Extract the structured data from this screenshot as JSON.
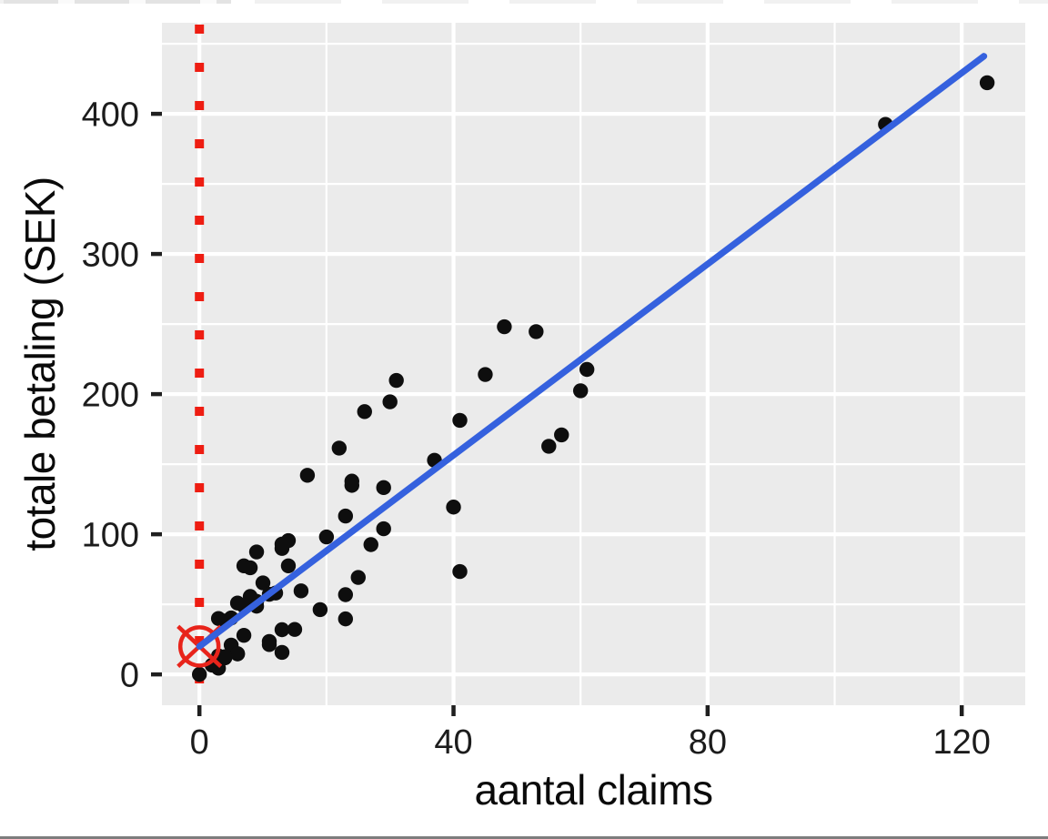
{
  "chart_data": {
    "type": "scatter",
    "title": "",
    "xlabel": "aantal claims",
    "ylabel": "totale betaling (SEK)",
    "xlim": [
      -5.9,
      130.0
    ],
    "ylim": [
      -22,
      465
    ],
    "x_ticks": [
      0,
      40,
      80,
      120
    ],
    "y_ticks": [
      0,
      100,
      200,
      300,
      400
    ],
    "x_minor_ticks": [
      20,
      60,
      100
    ],
    "y_minor_ticks": [
      50,
      150,
      250,
      350,
      450
    ],
    "grid": true,
    "legend": false,
    "points": [
      [
        108,
        392.5
      ],
      [
        19,
        46.2
      ],
      [
        13,
        15.7
      ],
      [
        124,
        422.2
      ],
      [
        40,
        119.4
      ],
      [
        57,
        170.9
      ],
      [
        23,
        56.9
      ],
      [
        14,
        77.5
      ],
      [
        45,
        214.0
      ],
      [
        10,
        65.3
      ],
      [
        5,
        20.9
      ],
      [
        48,
        248.1
      ],
      [
        11,
        23.5
      ],
      [
        23,
        39.6
      ],
      [
        7,
        48.8
      ],
      [
        2,
        6.6
      ],
      [
        24,
        134.9
      ],
      [
        6,
        50.9
      ],
      [
        3,
        4.4
      ],
      [
        23,
        113.0
      ],
      [
        6,
        14.8
      ],
      [
        9,
        48.7
      ],
      [
        9,
        52.1
      ],
      [
        3,
        13.2
      ],
      [
        29,
        103.9
      ],
      [
        7,
        77.5
      ],
      [
        4,
        11.8
      ],
      [
        20,
        98.1
      ],
      [
        7,
        27.9
      ],
      [
        4,
        38.1
      ],
      [
        0,
        0.0
      ],
      [
        25,
        69.2
      ],
      [
        6,
        14.6
      ],
      [
        5,
        40.3
      ],
      [
        22,
        161.5
      ],
      [
        11,
        57.2
      ],
      [
        61,
        217.6
      ],
      [
        12,
        58.1
      ],
      [
        4,
        12.6
      ],
      [
        16,
        59.6
      ],
      [
        13,
        89.9
      ],
      [
        60,
        202.4
      ],
      [
        41,
        181.3
      ],
      [
        37,
        152.8
      ],
      [
        55,
        162.8
      ],
      [
        41,
        73.4
      ],
      [
        11,
        21.3
      ],
      [
        27,
        92.6
      ],
      [
        8,
        76.1
      ],
      [
        3,
        39.9
      ],
      [
        17,
        142.1
      ],
      [
        13,
        93.0
      ],
      [
        13,
        31.9
      ],
      [
        15,
        32.1
      ],
      [
        8,
        55.6
      ],
      [
        29,
        133.3
      ],
      [
        30,
        194.5
      ],
      [
        24,
        137.9
      ],
      [
        9,
        87.4
      ],
      [
        31,
        209.8
      ],
      [
        14,
        95.5
      ],
      [
        53,
        244.6
      ],
      [
        26,
        187.5
      ]
    ],
    "regression_line": {
      "slope": 3.41,
      "intercept": 20.0,
      "x_start": 0,
      "x_end": 123.5,
      "color": "#3561DE"
    },
    "zero_vline": {
      "x": 0,
      "style": "dotted",
      "color": "#EE1D12"
    },
    "intercept_marker": {
      "x": 0,
      "y": 20,
      "shape": "circle-cross",
      "color": "#E8241B"
    },
    "colors": {
      "point": "#0e0e0e",
      "panel_bg": "#EBEBEB",
      "gridline": "#FFFFFF",
      "tick_mark": "#1f1f1f",
      "tick_label": "#1c1c1c",
      "axis_title": "#0a0a0a"
    }
  }
}
